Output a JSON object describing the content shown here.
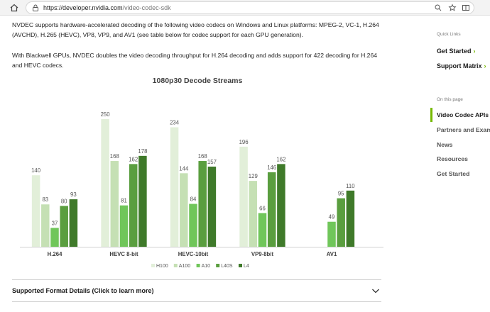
{
  "browser": {
    "url_domain": "https://developer.nvidia.com",
    "url_path": "/video-codec-sdk"
  },
  "content": {
    "paragraph1": "NVDEC supports hardware-accelerated decoding of the following video codecs on Windows and Linux platforms: MPEG-2, VC-1, H.264 (AVCHD), H.265 (HEVC), VP8, VP9, and AV1 (see table below for codec support for each GPU generation).",
    "paragraph2": "With Blackwell GPUs, NVDEC doubles the video decoding throughput for H.264 decoding and adds support for 422 decoding for H.264 and HEVC codecs.",
    "accordion_label": "Supported Format Details (Click to learn more)"
  },
  "sidebar": {
    "quick_links_title": "Quick Links",
    "quick_links": [
      {
        "label": "Get Started",
        "arrow": "›"
      },
      {
        "label": "Support Matrix",
        "arrow": "›"
      }
    ],
    "on_this_page_title": "On this page",
    "toc": [
      "Video Codec APIs",
      "Partners and Exam",
      "News",
      "Resources",
      "Get Started"
    ]
  },
  "chart_data": {
    "type": "bar",
    "title": "1080p30 Decode Streams",
    "categories": [
      "H.264",
      "HEVC 8-bit",
      "HEVC-10bit",
      "VP9-8bit",
      "AV1"
    ],
    "series": [
      {
        "name": "H100",
        "color": "#e2efd9",
        "values": [
          140,
          250,
          234,
          196,
          null
        ]
      },
      {
        "name": "A100",
        "color": "#c5e0b4",
        "values": [
          83,
          168,
          144,
          129,
          null
        ]
      },
      {
        "name": "A10",
        "color": "#70c65a",
        "values": [
          37,
          81,
          84,
          66,
          49
        ]
      },
      {
        "name": "L40S",
        "color": "#5a9e3f",
        "values": [
          80,
          162,
          168,
          146,
          95
        ]
      },
      {
        "name": "L4",
        "color": "#3f7a2a",
        "values": [
          93,
          178,
          157,
          162,
          110
        ]
      }
    ],
    "ylim": [
      0,
      250
    ],
    "grid": false,
    "legend_position": "bottom"
  }
}
